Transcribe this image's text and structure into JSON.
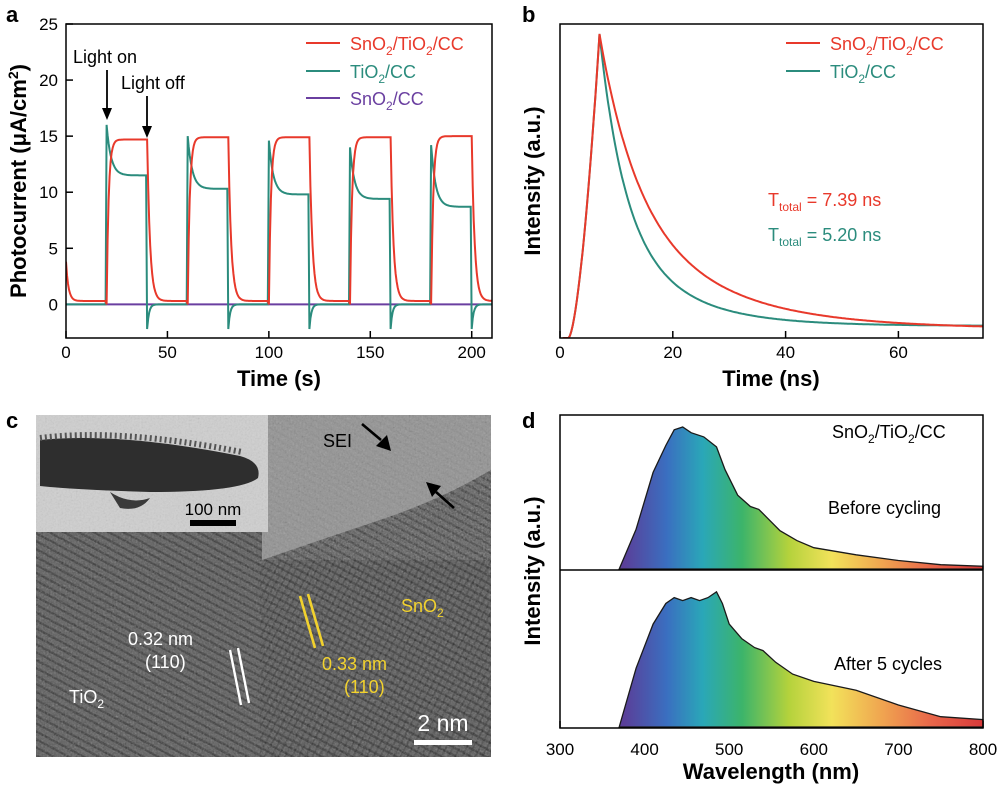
{
  "colors": {
    "red": "#e8392b",
    "teal": "#2b8c7d",
    "purple": "#6a3fa0",
    "yellow": "#f2d22e",
    "black": "#1a1a1a"
  },
  "chart_data": [
    {
      "panel": "a",
      "type": "line",
      "xlabel": "Time (s)",
      "ylabel": "Photocurrent (μA/cm²)",
      "xlim": [
        0,
        210
      ],
      "ylim": [
        -3,
        25
      ],
      "xticks": [
        "0",
        "50",
        "100",
        "150",
        "200"
      ],
      "yticks": [
        "0",
        "5",
        "10",
        "15",
        "20",
        "25"
      ],
      "light_periods": [
        [
          20,
          40
        ],
        [
          60,
          80
        ],
        [
          100,
          120
        ],
        [
          140,
          160
        ],
        [
          180,
          200
        ]
      ],
      "annotations": [
        "Light on",
        "Light off"
      ],
      "series": [
        {
          "name": "SnO₂/TiO₂/CC",
          "color": "red",
          "on_levels": [
            14.7,
            14.9,
            14.9,
            14.9,
            15.0
          ],
          "off_level": 0.3
        },
        {
          "name": "TiO₂/CC",
          "color": "teal",
          "spikes": [
            16.0,
            15.0,
            14.6,
            14.0,
            14.2
          ],
          "end_levels": [
            11.5,
            10.3,
            9.8,
            9.4,
            8.7
          ],
          "off_level": 0.0
        },
        {
          "name": "SnO₂/CC",
          "color": "purple",
          "values": "flat",
          "level": 0.0
        }
      ]
    },
    {
      "panel": "b",
      "type": "line",
      "xlabel": "Time (ns)",
      "ylabel": "Intensity (a.u.)",
      "xlim": [
        0,
        75
      ],
      "xticks": [
        "0",
        "20",
        "40",
        "60"
      ],
      "peak_time": 7,
      "series": [
        {
          "name": "SnO₂/TiO₂/CC",
          "color": "red",
          "lifetime": "T_total = 7.39 ns"
        },
        {
          "name": "TiO₂/CC",
          "color": "teal",
          "lifetime": "T_total = 5.20 ns"
        }
      ]
    },
    {
      "panel": "d",
      "type": "area",
      "xlabel": "Wavelength (nm)",
      "ylabel": "Intensity (a.u.)",
      "xlim": [
        300,
        800
      ],
      "xticks": [
        "300",
        "400",
        "500",
        "600",
        "700",
        "800"
      ],
      "sample": "SnO₂/TiO₂/CC",
      "series": [
        {
          "name": "Before cycling",
          "x": [
            370,
            390,
            410,
            425,
            435,
            445,
            455,
            470,
            485,
            495,
            510,
            525,
            535,
            545,
            560,
            580,
            600,
            650,
            700,
            750,
            800
          ],
          "y": [
            0.0,
            0.28,
            0.68,
            0.87,
            0.98,
            1.0,
            0.96,
            0.93,
            0.86,
            0.7,
            0.52,
            0.44,
            0.42,
            0.36,
            0.27,
            0.2,
            0.15,
            0.1,
            0.06,
            0.03,
            0.02
          ]
        },
        {
          "name": "After 5 cycles",
          "x": [
            370,
            390,
            410,
            425,
            435,
            445,
            455,
            465,
            475,
            485,
            492,
            500,
            515,
            530,
            540,
            555,
            575,
            600,
            650,
            700,
            750,
            800
          ],
          "y": [
            0.0,
            0.4,
            0.7,
            0.84,
            0.88,
            0.86,
            0.88,
            0.86,
            0.88,
            0.92,
            0.84,
            0.7,
            0.6,
            0.54,
            0.52,
            0.44,
            0.36,
            0.31,
            0.25,
            0.15,
            0.07,
            0.05
          ]
        }
      ]
    }
  ],
  "panel_labels": {
    "a": "a",
    "b": "b",
    "c": "c",
    "d": "d"
  },
  "panel_a": {
    "ylabel_main": "Photocurrent (μA/cm",
    "ylabel_sup": "2",
    "ylabel_end": ")",
    "legend": [
      {
        "a": "SnO",
        "s1": "2",
        "b": "/TiO",
        "s2": "2",
        "c": "/CC"
      },
      {
        "a": "TiO",
        "s1": "2",
        "b": "/CC"
      },
      {
        "a": "SnO",
        "s1": "2",
        "b": "/CC"
      }
    ],
    "light_on": "Light on",
    "light_off": "Light off"
  },
  "panel_b": {
    "legend": [
      {
        "a": "SnO",
        "s1": "2",
        "b": "/TiO",
        "s2": "2",
        "c": "/CC"
      },
      {
        "a": "TiO",
        "s1": "2",
        "b": "/CC"
      }
    ],
    "t1": {
      "pre": "T",
      "sub": "total",
      "post": " = 7.39 ns"
    },
    "t2": {
      "pre": "T",
      "sub": "total",
      "post": " = 5.20 ns"
    }
  },
  "panel_c": {
    "sei": "SEI",
    "scale_inset": "100 nm",
    "scale_main": "2 nm",
    "d_tio2": "0.32 nm",
    "hkl_tio2": "(110)",
    "d_sno2": "0.33 nm",
    "hkl_sno2": "(110)",
    "tio2": {
      "a": "TiO",
      "s": "2"
    },
    "sno2": {
      "a": "SnO",
      "s": "2"
    }
  },
  "panel_d": {
    "title": {
      "a": "SnO",
      "s1": "2",
      "b": "/TiO",
      "s2": "2",
      "c": "/CC"
    },
    "before": "Before cycling",
    "after": "After 5 cycles"
  }
}
